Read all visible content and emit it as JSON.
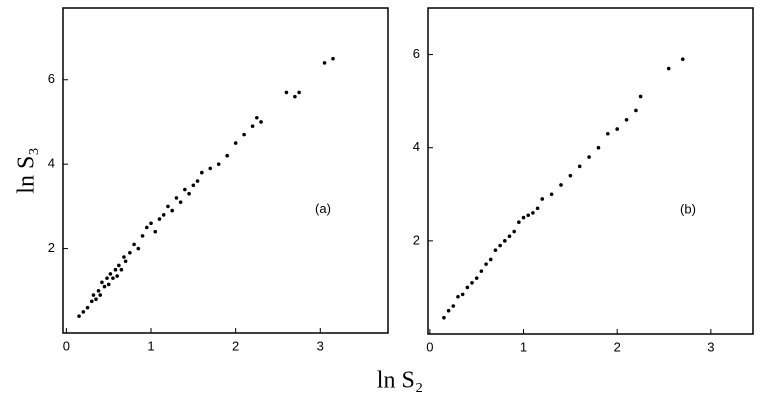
{
  "chart_data": [
    {
      "type": "scatter",
      "ylabel": "ln S₃",
      "annotation": "(a)",
      "color": "#000000",
      "x": [
        0.15,
        0.2,
        0.25,
        0.3,
        0.32,
        0.35,
        0.38,
        0.4,
        0.42,
        0.45,
        0.48,
        0.5,
        0.52,
        0.55,
        0.58,
        0.6,
        0.62,
        0.65,
        0.68,
        0.7,
        0.75,
        0.8,
        0.85,
        0.9,
        0.95,
        1.0,
        1.05,
        1.1,
        1.15,
        1.2,
        1.25,
        1.3,
        1.35,
        1.4,
        1.45,
        1.5,
        1.55,
        1.6,
        1.7,
        1.8,
        1.9,
        2.0,
        2.1,
        2.2,
        2.25,
        2.3,
        2.6,
        2.7,
        2.75,
        3.05,
        3.15
      ],
      "values": [
        0.4,
        0.5,
        0.6,
        0.75,
        0.9,
        0.8,
        1.0,
        0.9,
        1.2,
        1.1,
        1.3,
        1.15,
        1.4,
        1.3,
        1.5,
        1.35,
        1.6,
        1.5,
        1.8,
        1.7,
        1.9,
        2.1,
        2.0,
        2.3,
        2.5,
        2.6,
        2.4,
        2.7,
        2.8,
        3.0,
        2.9,
        3.2,
        3.1,
        3.4,
        3.3,
        3.5,
        3.6,
        3.8,
        3.9,
        4.0,
        4.2,
        4.5,
        4.7,
        4.9,
        5.1,
        5.0,
        5.7,
        5.6,
        5.7,
        6.4,
        6.5
      ],
      "xlim": [
        -0.04,
        3.8
      ],
      "ylim": [
        0,
        7.7
      ],
      "xticks": [
        0,
        1,
        2,
        3
      ],
      "yticks": [
        2,
        4,
        6
      ]
    },
    {
      "type": "scatter",
      "xlabel": "ln S₂",
      "annotation": "(b)",
      "color": "#000000",
      "x": [
        0.15,
        0.2,
        0.25,
        0.3,
        0.35,
        0.4,
        0.45,
        0.5,
        0.55,
        0.6,
        0.65,
        0.7,
        0.75,
        0.8,
        0.85,
        0.9,
        0.95,
        1.0,
        1.05,
        1.1,
        1.15,
        1.2,
        1.3,
        1.4,
        1.5,
        1.6,
        1.7,
        1.8,
        1.9,
        2.0,
        2.1,
        2.2,
        2.25,
        2.55,
        2.7
      ],
      "values": [
        0.35,
        0.5,
        0.6,
        0.8,
        0.85,
        1.0,
        1.1,
        1.2,
        1.35,
        1.5,
        1.6,
        1.8,
        1.9,
        2.0,
        2.1,
        2.2,
        2.4,
        2.5,
        2.55,
        2.6,
        2.7,
        2.9,
        3.0,
        3.2,
        3.4,
        3.6,
        3.8,
        4.0,
        4.3,
        4.4,
        4.6,
        4.8,
        5.1,
        5.7,
        5.9
      ],
      "xlim": [
        -0.02,
        3.45
      ],
      "ylim": [
        0,
        7.0
      ],
      "xticks": [
        0,
        1,
        2,
        3
      ],
      "yticks": [
        2,
        4,
        6
      ]
    }
  ]
}
